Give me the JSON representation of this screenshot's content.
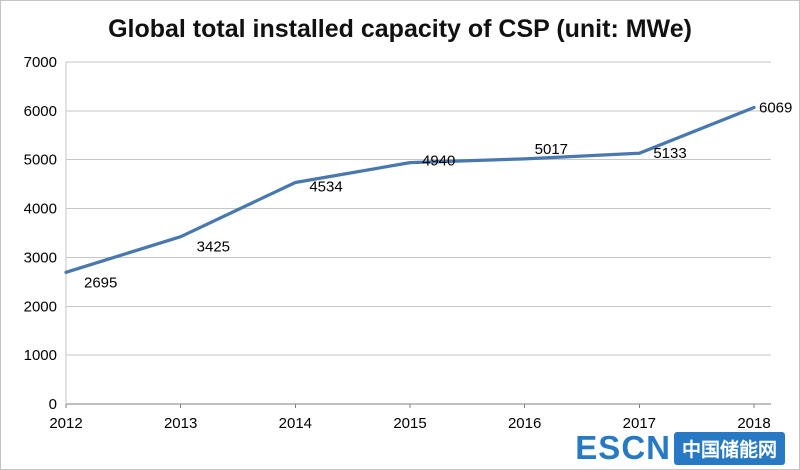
{
  "chart_data": {
    "type": "line",
    "title": "Global total installed capacity of CSP (unit: MWe)",
    "categories": [
      "2012",
      "2013",
      "2014",
      "2015",
      "2016",
      "2017",
      "2018"
    ],
    "values": [
      2695,
      3425,
      4534,
      4940,
      5017,
      5133,
      6069
    ],
    "series_name": "Global total installed capacity of CSP",
    "xlabel": "",
    "ylabel": "",
    "ylim": [
      0,
      7000
    ],
    "ytick_interval": 1000,
    "grid": true,
    "legend": "none",
    "data_labels": true,
    "line_color": "#4878ae",
    "gridline_color": "#c6c6c6",
    "axis_line_color": "#7f7f7f"
  },
  "watermark": {
    "logo_text": "ESCN",
    "site_name": "中国储能网",
    "color": "#2779c4"
  }
}
